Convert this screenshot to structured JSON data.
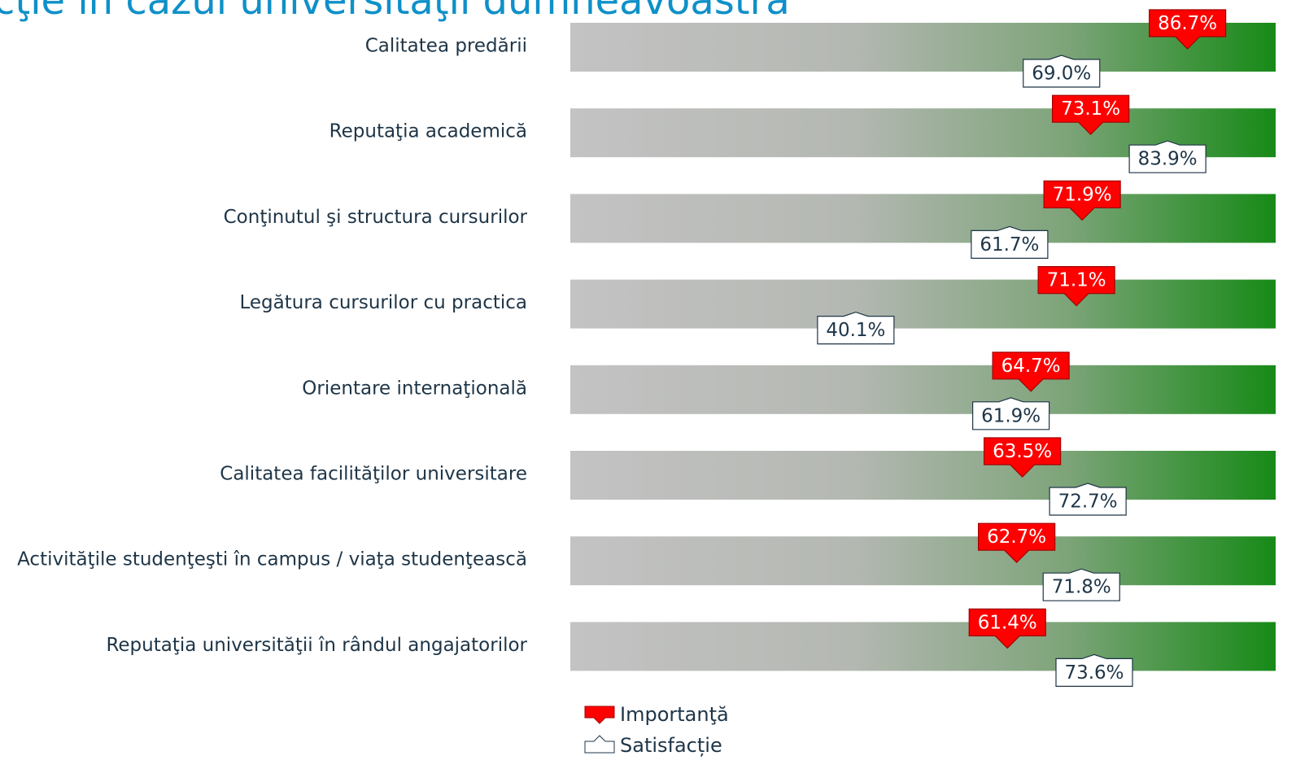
{
  "chart_data": {
    "type": "marker-bar",
    "title": "cţie în cazul universităţii dumneavoastră",
    "categories": [
      "Calitatea predării",
      "Reputaţia academică",
      "Conţinutul şi structura cursurilor",
      "Legătura cursurilor cu practica",
      "Orientare internaţională",
      "Calitatea facilităţilor universitare",
      "Activităţile studenţeşti în campus / viaţa studenţească",
      "Reputaţia universităţii în rândul angajatorilor"
    ],
    "xlim": [
      0,
      100
    ],
    "series": [
      {
        "name": "Importanţă",
        "color": "#ff0000",
        "values": [
          86.7,
          73.1,
          71.9,
          71.1,
          64.7,
          63.5,
          62.7,
          61.4
        ],
        "value_labels": [
          "86.7%",
          "73.1%",
          "71.9%",
          "71.1%",
          "64.7%",
          "63.5%",
          "62.7%",
          "61.4%"
        ]
      },
      {
        "name": "Satisfacție",
        "color": "#ffffff",
        "values": [
          69.0,
          83.9,
          61.7,
          40.1,
          61.9,
          72.7,
          71.8,
          73.6
        ],
        "value_labels": [
          "69.0%",
          "83.9%",
          "61.7%",
          "40.1%",
          "61.9%",
          "72.7%",
          "71.8%",
          "73.6%"
        ]
      }
    ]
  }
}
